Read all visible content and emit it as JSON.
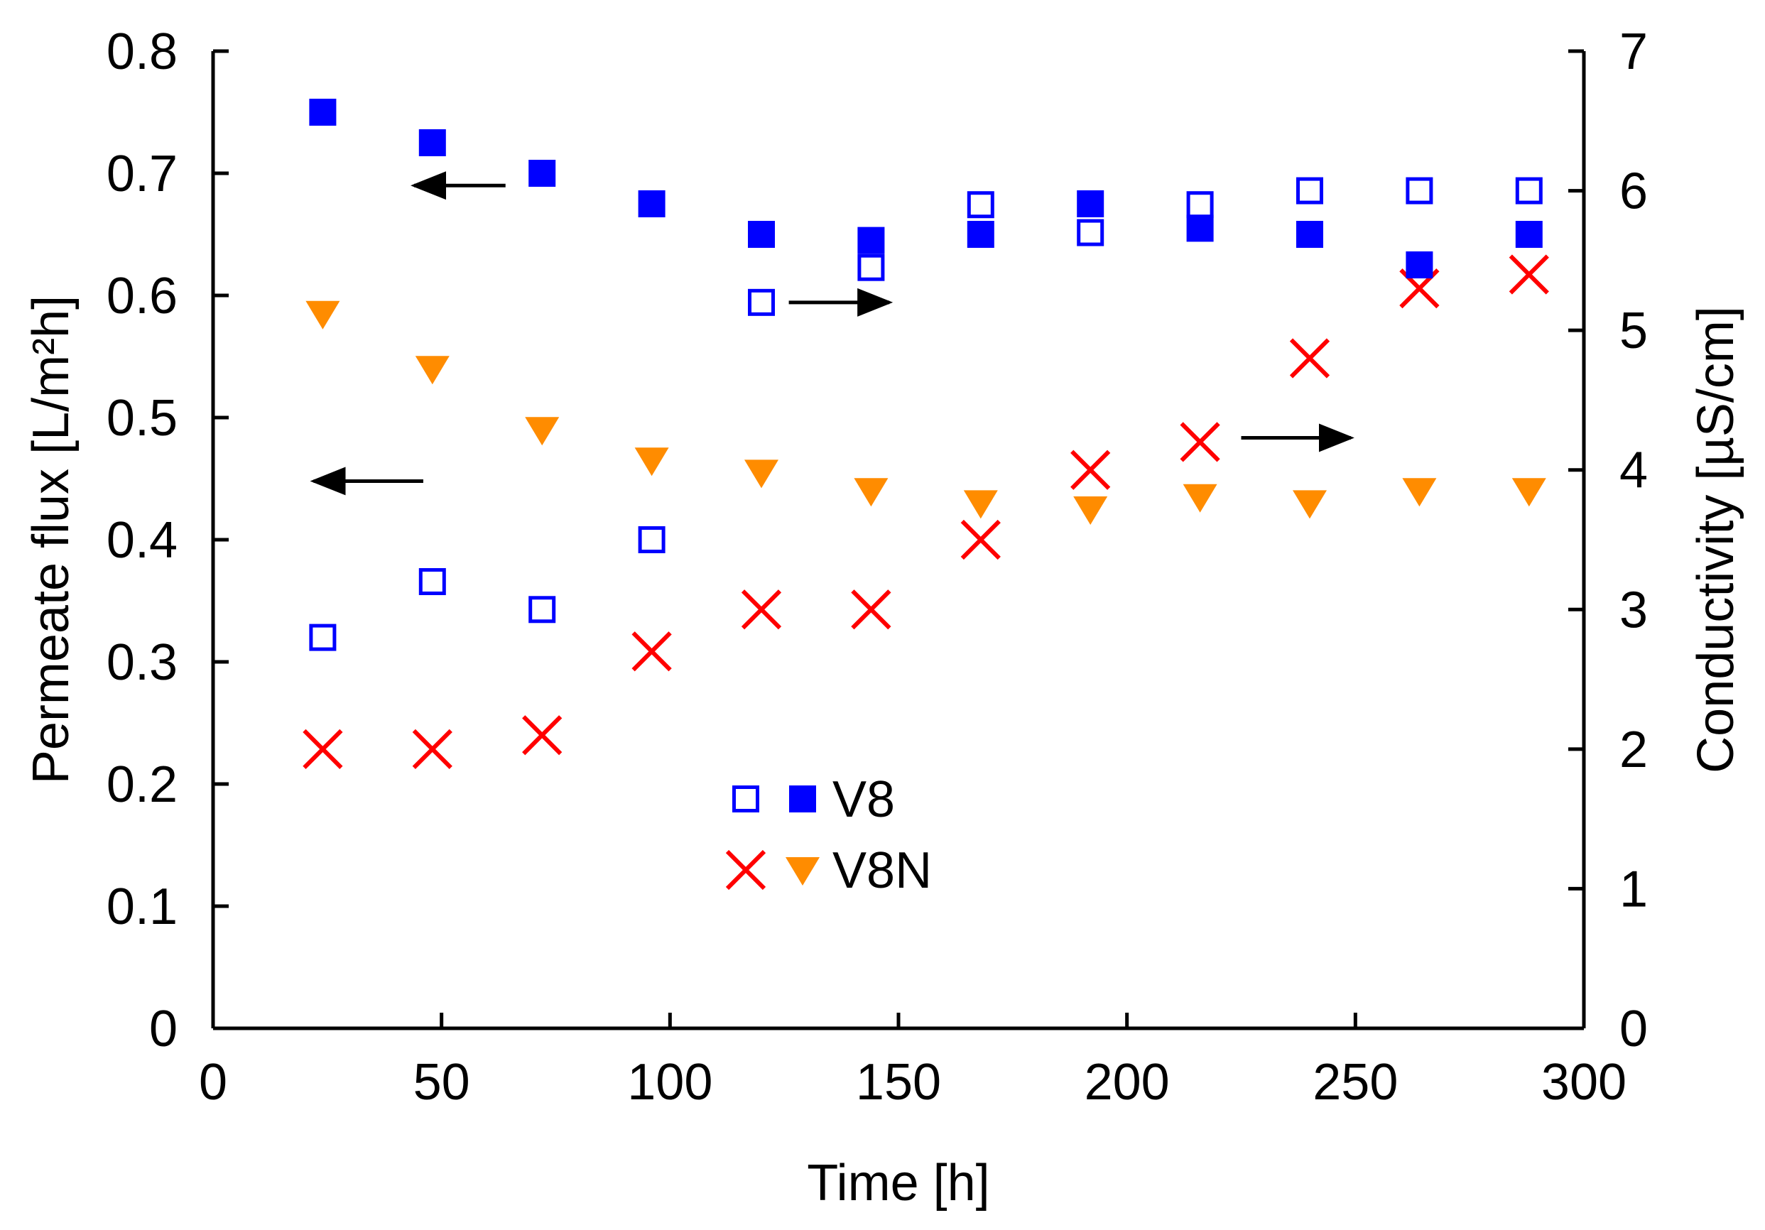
{
  "chart_data": {
    "type": "scatter",
    "xlabel": "Time [h]",
    "ylabel_left": "Permeate flux [L/m²h]",
    "ylabel_right": "Conductivity [µS/cm]",
    "xlim": [
      0,
      300
    ],
    "ylim_left": [
      0,
      0.8
    ],
    "ylim_right": [
      0,
      7
    ],
    "x_ticks": [
      "0",
      "50",
      "100",
      "150",
      "200",
      "250",
      "300"
    ],
    "y_left_ticks": [
      "0",
      "0.1",
      "0.2",
      "0.3",
      "0.4",
      "0.5",
      "0.6",
      "0.7",
      "0.8"
    ],
    "y_right_ticks": [
      "0",
      "1",
      "2",
      "3",
      "4",
      "5",
      "6",
      "7"
    ],
    "grid": false,
    "series": [
      {
        "name": "V8 permeate flux",
        "axis": "left",
        "marker": "filled-square",
        "color": "#0000ff",
        "x": [
          24,
          48,
          72,
          96,
          120,
          144,
          168,
          192,
          216,
          240,
          264,
          288
        ],
        "y": [
          0.75,
          0.725,
          0.7,
          0.675,
          0.65,
          0.645,
          0.65,
          0.675,
          0.655,
          0.65,
          0.625,
          0.65
        ]
      },
      {
        "name": "V8 conductivity",
        "axis": "right",
        "marker": "open-square",
        "color": "#0000ff",
        "x": [
          24,
          48,
          72,
          96,
          120,
          144,
          168,
          192,
          216,
          240,
          264,
          288
        ],
        "y": [
          2.8,
          3.2,
          3.0,
          3.5,
          5.2,
          5.45,
          5.9,
          5.7,
          5.9,
          6.0,
          6.0,
          6.0
        ]
      },
      {
        "name": "V8N permeate flux",
        "axis": "left",
        "marker": "triangle-down",
        "color": "#ff8c00",
        "x": [
          24,
          48,
          72,
          96,
          120,
          144,
          168,
          192,
          216,
          240,
          264,
          288
        ],
        "y": [
          0.585,
          0.54,
          0.49,
          0.465,
          0.455,
          0.44,
          0.43,
          0.425,
          0.435,
          0.43,
          0.44,
          0.44
        ]
      },
      {
        "name": "V8N conductivity",
        "axis": "right",
        "marker": "x",
        "color": "#ff0000",
        "x": [
          24,
          48,
          72,
          96,
          120,
          144,
          168,
          192,
          216,
          240,
          264,
          288
        ],
        "y": [
          2.0,
          2.0,
          2.1,
          2.7,
          3.0,
          3.0,
          3.5,
          4.0,
          4.2,
          4.8,
          5.3,
          5.4
        ]
      }
    ],
    "legend": {
      "placement": "center",
      "entries": [
        {
          "label": "V8",
          "markers": [
            "open-square",
            "filled-square"
          ]
        },
        {
          "label": "V8N",
          "markers": [
            "x",
            "triangle-down"
          ]
        }
      ]
    },
    "annotations": [
      {
        "type": "arrow",
        "direction": "left",
        "axis": "left",
        "x_from": 64,
        "x_to": 44,
        "y": 0.69
      },
      {
        "type": "arrow",
        "direction": "left",
        "axis": "left",
        "x_from": 46,
        "x_to": 22,
        "y": 0.448
      },
      {
        "type": "arrow",
        "direction": "right",
        "axis": "right",
        "x_from": 126,
        "x_to": 148,
        "y": 5.2
      },
      {
        "type": "arrow",
        "direction": "right",
        "axis": "right",
        "x_from": 225,
        "x_to": 249,
        "y": 4.23
      }
    ]
  }
}
